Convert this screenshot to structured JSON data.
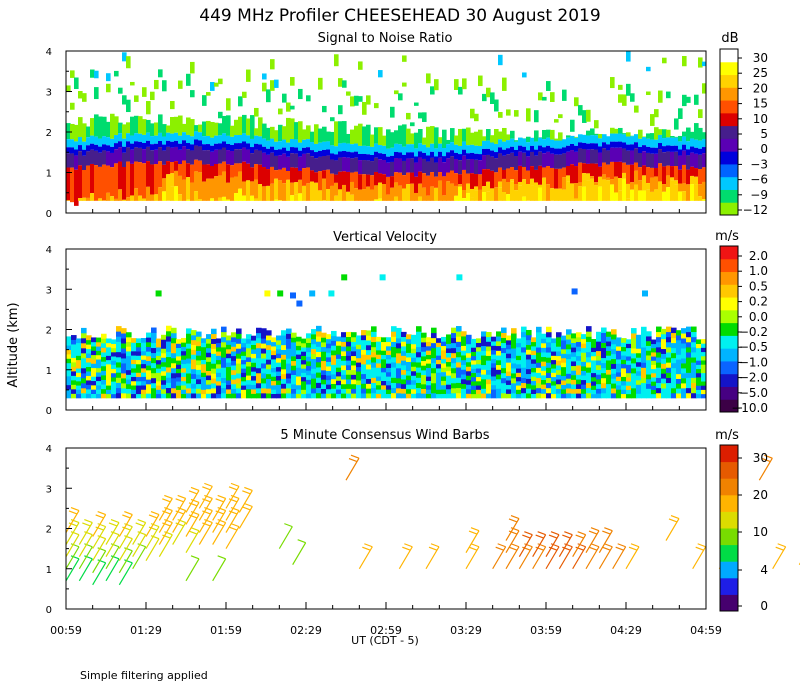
{
  "figure": {
    "title": "449 MHz Profiler CHEESEHEAD 30 August 2019",
    "ylabel": "Altitude (km)",
    "xlabel": "UT  (CDT - 5)",
    "footnote": "Simple filtering applied",
    "x_ticks": [
      "00:59",
      "01:29",
      "01:59",
      "02:29",
      "02:59",
      "03:29",
      "03:59",
      "04:29",
      "04:59"
    ]
  },
  "colors": {
    "snr_scale": [
      "#8cf000",
      "#00dc6e",
      "#00c8ff",
      "#0064ff",
      "#0000dc",
      "#5a00b4",
      "#461e8c",
      "#dc0000",
      "#ff5000",
      "#ff9600",
      "#ffd200",
      "#ffff00",
      "#ffffff"
    ],
    "vel_scale": [
      "#3c0046",
      "#460082",
      "#1414c8",
      "#0a64ff",
      "#00b4ff",
      "#00f0f0",
      "#00dc00",
      "#aaff00",
      "#ffff00",
      "#ffc800",
      "#ff9600",
      "#ff5000",
      "#f01414"
    ],
    "wind_scale": [
      "#46006e",
      "#1e1ee6",
      "#00aaff",
      "#00dc46",
      "#78dc00",
      "#dcdc00",
      "#ffb400",
      "#f08200",
      "#e65a00",
      "#dc1e00"
    ]
  },
  "chart_data": [
    {
      "type": "heatmap",
      "name": "snr",
      "title": "Signal to Noise Ratio",
      "unit": "dB",
      "x_range": [
        "00:59",
        "04:59"
      ],
      "ylim": [
        0,
        4
      ],
      "y_ticks": [
        "0",
        "1",
        "2",
        "3",
        "4"
      ],
      "colorbar_labels": [
        "30",
        "25",
        "20",
        "15",
        "10",
        "5",
        "0",
        "−3",
        "−6",
        "−9",
        "−12"
      ],
      "colorbar_levels": [
        -12,
        -9,
        -6,
        -3,
        0,
        5,
        10,
        15,
        20,
        25,
        30
      ],
      "approx_layers": {
        "strong_echo_top_km": 1.5,
        "weak_echo_top_km": 2.3,
        "scattered_echo_max_km": 3.9,
        "lowest_gate_km": 0.3
      }
    },
    {
      "type": "heatmap",
      "name": "velocity",
      "title": "Vertical Velocity",
      "unit": "m/s",
      "x_range": [
        "00:59",
        "04:59"
      ],
      "ylim": [
        0,
        4
      ],
      "y_ticks": [
        "0",
        "1",
        "2",
        "3",
        "4"
      ],
      "colorbar_labels": [
        "2.0",
        "1.0",
        "0.5",
        "0.2",
        "0.0",
        "−0.2",
        "−0.5",
        "−1.0",
        "−2.0",
        "−5.0",
        "−10.0"
      ],
      "colorbar_levels": [
        -10.0,
        -5.0,
        -2.0,
        -1.0,
        -0.5,
        -0.2,
        0.0,
        0.2,
        0.5,
        1.0,
        2.0
      ],
      "approx_layers": {
        "data_top_km": 2.0,
        "lowest_gate_km": 0.3
      }
    },
    {
      "type": "scatter",
      "name": "wind_barbs",
      "title": "5 Minute Consensus Wind Barbs",
      "unit": "m/s",
      "x_range": [
        "00:59",
        "04:59"
      ],
      "ylim": [
        0,
        4
      ],
      "y_ticks": [
        "0",
        "1",
        "2",
        "3",
        "4"
      ],
      "colorbar_labels": [
        "30",
        "20",
        "10",
        "4",
        "0"
      ],
      "colorbar_levels": [
        0,
        4,
        10,
        20,
        30
      ],
      "barbs": [
        {
          "t": 0,
          "alt": 0.7,
          "speed": 8
        },
        {
          "t": 0,
          "alt": 1.0,
          "speed": 10
        },
        {
          "t": 0,
          "alt": 1.3,
          "speed": 14
        },
        {
          "t": 0,
          "alt": 1.6,
          "speed": 16
        },
        {
          "t": 0,
          "alt": 1.9,
          "speed": 18
        },
        {
          "t": 5,
          "alt": 0.7,
          "speed": 8
        },
        {
          "t": 5,
          "alt": 1.0,
          "speed": 10
        },
        {
          "t": 5,
          "alt": 1.3,
          "speed": 14
        },
        {
          "t": 5,
          "alt": 1.6,
          "speed": 16
        },
        {
          "t": 10,
          "alt": 0.6,
          "speed": 8
        },
        {
          "t": 10,
          "alt": 0.9,
          "speed": 10
        },
        {
          "t": 10,
          "alt": 1.2,
          "speed": 14
        },
        {
          "t": 10,
          "alt": 1.5,
          "speed": 16
        },
        {
          "t": 10,
          "alt": 1.8,
          "speed": 18
        },
        {
          "t": 15,
          "alt": 0.7,
          "speed": 8
        },
        {
          "t": 15,
          "alt": 1.0,
          "speed": 12
        },
        {
          "t": 15,
          "alt": 1.3,
          "speed": 14
        },
        {
          "t": 15,
          "alt": 1.6,
          "speed": 16
        },
        {
          "t": 20,
          "alt": 0.6,
          "speed": 8
        },
        {
          "t": 20,
          "alt": 0.9,
          "speed": 12
        },
        {
          "t": 20,
          "alt": 1.2,
          "speed": 14
        },
        {
          "t": 20,
          "alt": 1.5,
          "speed": 16
        },
        {
          "t": 20,
          "alt": 1.8,
          "speed": 18
        },
        {
          "t": 25,
          "alt": 1.0,
          "speed": 12
        },
        {
          "t": 25,
          "alt": 1.3,
          "speed": 14
        },
        {
          "t": 25,
          "alt": 1.6,
          "speed": 16
        },
        {
          "t": 30,
          "alt": 1.2,
          "speed": 14
        },
        {
          "t": 30,
          "alt": 1.5,
          "speed": 16
        },
        {
          "t": 30,
          "alt": 1.8,
          "speed": 18
        },
        {
          "t": 35,
          "alt": 1.3,
          "speed": 16
        },
        {
          "t": 35,
          "alt": 1.6,
          "speed": 18
        },
        {
          "t": 35,
          "alt": 1.9,
          "speed": 18
        },
        {
          "t": 35,
          "alt": 2.2,
          "speed": 20
        },
        {
          "t": 40,
          "alt": 1.6,
          "speed": 16
        },
        {
          "t": 40,
          "alt": 1.9,
          "speed": 18
        },
        {
          "t": 40,
          "alt": 2.2,
          "speed": 20
        },
        {
          "t": 45,
          "alt": 0.7,
          "speed": 10
        },
        {
          "t": 45,
          "alt": 1.4,
          "speed": 16
        },
        {
          "t": 45,
          "alt": 1.8,
          "speed": 18
        },
        {
          "t": 45,
          "alt": 2.1,
          "speed": 20
        },
        {
          "t": 45,
          "alt": 2.4,
          "speed": 20
        },
        {
          "t": 50,
          "alt": 1.6,
          "speed": 18
        },
        {
          "t": 50,
          "alt": 1.9,
          "speed": 18
        },
        {
          "t": 50,
          "alt": 2.2,
          "speed": 20
        },
        {
          "t": 50,
          "alt": 2.5,
          "speed": 20
        },
        {
          "t": 55,
          "alt": 0.7,
          "speed": 10
        },
        {
          "t": 55,
          "alt": 1.6,
          "speed": 18
        },
        {
          "t": 55,
          "alt": 1.9,
          "speed": 18
        },
        {
          "t": 55,
          "alt": 2.2,
          "speed": 20
        },
        {
          "t": 60,
          "alt": 1.5,
          "speed": 18
        },
        {
          "t": 60,
          "alt": 1.9,
          "speed": 18
        },
        {
          "t": 60,
          "alt": 2.2,
          "speed": 20
        },
        {
          "t": 60,
          "alt": 2.5,
          "speed": 20
        },
        {
          "t": 65,
          "alt": 2.0,
          "speed": 20
        },
        {
          "t": 65,
          "alt": 2.4,
          "speed": 20
        },
        {
          "t": 80,
          "alt": 1.5,
          "speed": 10
        },
        {
          "t": 85,
          "alt": 1.1,
          "speed": 12
        },
        {
          "t": 105,
          "alt": 3.2,
          "speed": 22
        },
        {
          "t": 110,
          "alt": 1.0,
          "speed": 20
        },
        {
          "t": 125,
          "alt": 1.0,
          "speed": 20
        },
        {
          "t": 135,
          "alt": 1.0,
          "speed": 20
        },
        {
          "t": 150,
          "alt": 1.0,
          "speed": 20
        },
        {
          "t": 150,
          "alt": 1.4,
          "speed": 20
        },
        {
          "t": 160,
          "alt": 1.0,
          "speed": 22
        },
        {
          "t": 165,
          "alt": 1.0,
          "speed": 22
        },
        {
          "t": 165,
          "alt": 1.4,
          "speed": 22
        },
        {
          "t": 165,
          "alt": 1.7,
          "speed": 22
        },
        {
          "t": 170,
          "alt": 1.0,
          "speed": 22
        },
        {
          "t": 170,
          "alt": 1.3,
          "speed": 24
        },
        {
          "t": 175,
          "alt": 1.0,
          "speed": 22
        },
        {
          "t": 175,
          "alt": 1.3,
          "speed": 24
        },
        {
          "t": 180,
          "alt": 1.0,
          "speed": 24
        },
        {
          "t": 180,
          "alt": 1.3,
          "speed": 24
        },
        {
          "t": 185,
          "alt": 1.0,
          "speed": 24
        },
        {
          "t": 185,
          "alt": 1.3,
          "speed": 24
        },
        {
          "t": 190,
          "alt": 1.0,
          "speed": 24
        },
        {
          "t": 190,
          "alt": 1.3,
          "speed": 22
        },
        {
          "t": 195,
          "alt": 1.0,
          "speed": 22
        },
        {
          "t": 195,
          "alt": 1.4,
          "speed": 22
        },
        {
          "t": 200,
          "alt": 1.0,
          "speed": 22
        },
        {
          "t": 200,
          "alt": 1.4,
          "speed": 22
        },
        {
          "t": 205,
          "alt": 1.0,
          "speed": 22
        },
        {
          "t": 210,
          "alt": 1.0,
          "speed": 20
        },
        {
          "t": 225,
          "alt": 1.7,
          "speed": 20
        },
        {
          "t": 235,
          "alt": 1.0,
          "speed": 20
        },
        {
          "t": 245,
          "alt": 1.0,
          "speed": 20
        },
        {
          "t": 260,
          "alt": 3.2,
          "speed": 22
        },
        {
          "t": 265,
          "alt": 1.0,
          "speed": 20
        },
        {
          "t": 275,
          "alt": 1.1,
          "speed": 20
        },
        {
          "t": 280,
          "alt": 1.2,
          "speed": 20
        },
        {
          "t": 285,
          "alt": 1.3,
          "speed": 20
        }
      ]
    }
  ]
}
